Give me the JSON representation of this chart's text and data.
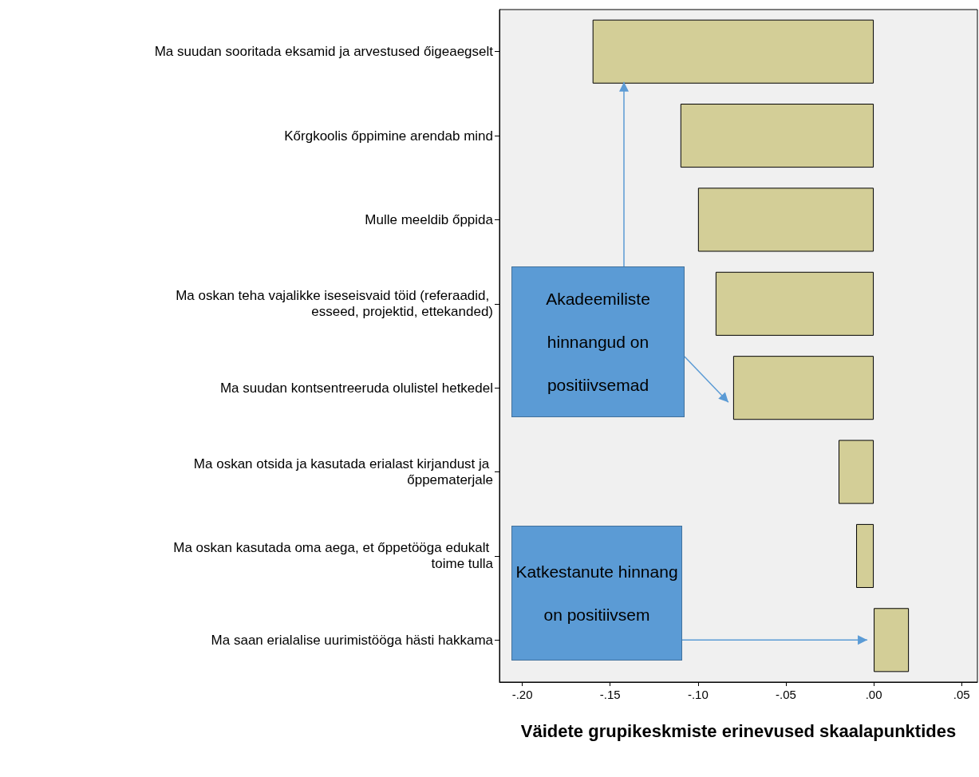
{
  "chart_data": {
    "type": "bar",
    "orientation": "horizontal",
    "categories": [
      "Ma suudan sooritada eksamid ja arvestused őigeaegselt",
      "Kőrgkoolis őppimine arendab mind",
      "Mulle meeldib őppida",
      "Ma oskan teha vajalikke iseseisvaid töid (referaadid, esseed, projektid, ettekanded)",
      "Ma suudan kontsentreeruda olulistel hetkedel",
      "Ma oskan otsida ja kasutada erialast kirjandust ja őppematerjale",
      "Ma oskan kasutada oma aega, et őppetööga edukalt toime tulla",
      "Ma saan erialalise uurimistööga hästi hakkama"
    ],
    "values": [
      -0.16,
      -0.11,
      -0.1,
      -0.09,
      -0.08,
      -0.02,
      -0.01,
      0.02
    ],
    "color": "#d3ce97",
    "xlabel": "Väidete grupikeskmiste erinevused skaalapunktides",
    "xlim": [
      -0.213,
      0.059
    ],
    "xticks": [
      {
        "value": -0.2,
        "label": "-.20"
      },
      {
        "value": -0.15,
        "label": "-.15"
      },
      {
        "value": -0.1,
        "label": "-.10"
      },
      {
        "value": -0.05,
        "label": "-.05"
      },
      {
        "value": 0,
        "label": ".00"
      },
      {
        "value": 0.05,
        "label": ".05"
      }
    ],
    "grid": false,
    "annotations": [
      "Akadeemiliste hinnangud on positiivsemad",
      "Katkestanute hinnang on positiivsem"
    ]
  }
}
